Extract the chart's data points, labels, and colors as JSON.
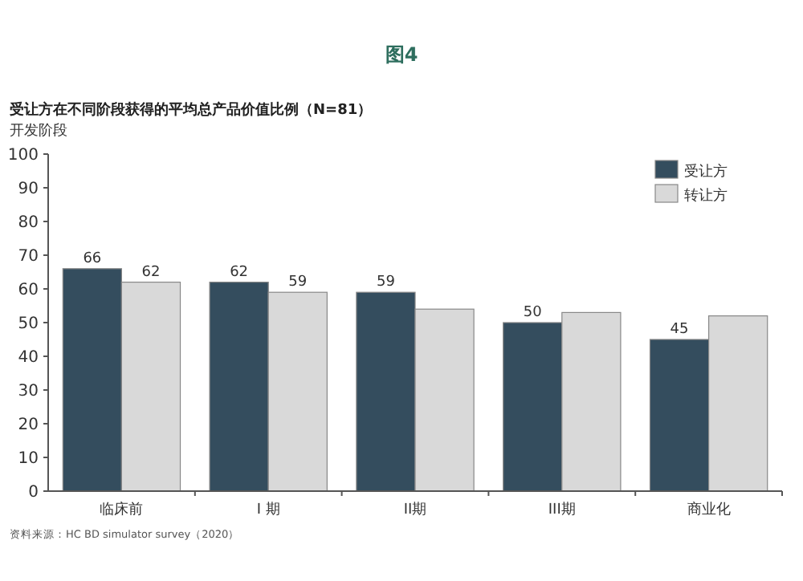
{
  "chart_data": {
    "type": "bar",
    "title": "图4",
    "subtitle": "受让方在不同阶段获得的平均总产品价值比例（N=81）",
    "ylabel": "开发阶段",
    "categories": [
      "临床前",
      "I 期",
      "II期",
      "III期",
      "商业化"
    ],
    "series": [
      {
        "name": "受让方",
        "color": "#344d5e",
        "values": [
          66,
          62,
          59,
          50,
          45
        ],
        "value_labels": [
          "66",
          "62",
          "59",
          "50",
          "45"
        ]
      },
      {
        "name": "转让方",
        "color": "#d9d9d9",
        "values": [
          62,
          59,
          54,
          53,
          52
        ],
        "value_labels": [
          "62",
          "59",
          null,
          null,
          null
        ]
      }
    ],
    "ylim": [
      0,
      100
    ],
    "yticks": [
      0,
      10,
      20,
      30,
      40,
      50,
      60,
      70,
      80,
      90,
      100
    ],
    "grid": false,
    "legend": "top right",
    "annotations": [
      "资料来源：HC BD simulator survey（2020）"
    ]
  }
}
